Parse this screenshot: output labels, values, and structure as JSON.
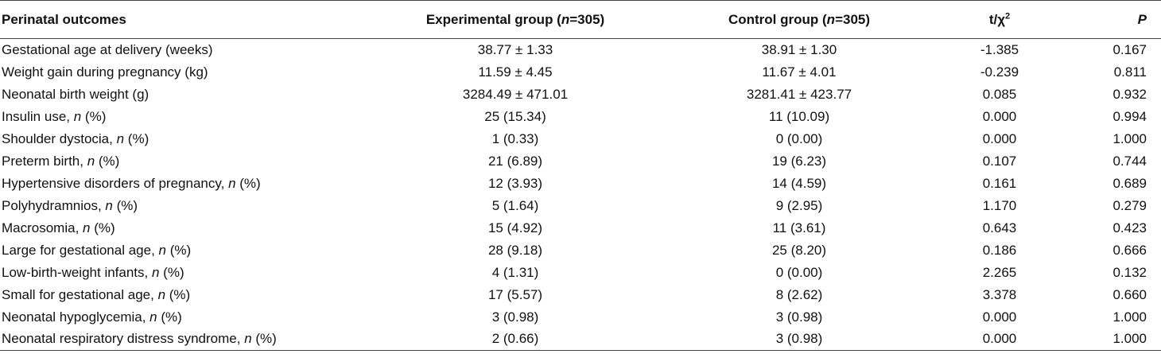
{
  "header": {
    "outcome": "Perinatal outcomes",
    "experimental": [
      "Experimental group (",
      "n",
      "=305)"
    ],
    "control": [
      "Control group (",
      "n",
      "=305)"
    ],
    "stat": [
      "t/χ",
      "2"
    ],
    "p": "P"
  },
  "rows": [
    {
      "outcome": [
        "Gestational age at delivery (weeks)"
      ],
      "experimental": "38.77 ± 1.33",
      "control": "38.91 ± 1.30",
      "stat": "-1.385",
      "p": "0.167"
    },
    {
      "outcome": [
        "Weight gain during pregnancy (kg)"
      ],
      "experimental": "11.59 ± 4.45",
      "control": "11.67 ± 4.01",
      "stat": "-0.239",
      "p": "0.811"
    },
    {
      "outcome": [
        "Neonatal birth weight (g)"
      ],
      "experimental": "3284.49 ± 471.01",
      "control": "3281.41 ± 423.77",
      "stat": "0.085",
      "p": "0.932"
    },
    {
      "outcome": [
        "Insulin use, ",
        "n",
        " (%)"
      ],
      "experimental": "25 (15.34)",
      "control": "11 (10.09)",
      "stat": "0.000",
      "p": "0.994"
    },
    {
      "outcome": [
        "Shoulder dystocia, ",
        "n",
        " (%)"
      ],
      "experimental": "1 (0.33)",
      "control": "0 (0.00)",
      "stat": "0.000",
      "p": "1.000"
    },
    {
      "outcome": [
        "Preterm birth, ",
        "n",
        " (%)"
      ],
      "experimental": "21 (6.89)",
      "control": "19 (6.23)",
      "stat": "0.107",
      "p": "0.744"
    },
    {
      "outcome": [
        "Hypertensive disorders of pregnancy, ",
        "n",
        " (%)"
      ],
      "experimental": "12 (3.93)",
      "control": "14 (4.59)",
      "stat": "0.161",
      "p": "0.689"
    },
    {
      "outcome": [
        "Polyhydramnios, ",
        "n",
        " (%)"
      ],
      "experimental": "5 (1.64)",
      "control": "9 (2.95)",
      "stat": "1.170",
      "p": "0.279"
    },
    {
      "outcome": [
        "Macrosomia, ",
        "n",
        " (%)"
      ],
      "experimental": "15 (4.92)",
      "control": "11 (3.61)",
      "stat": "0.643",
      "p": "0.423"
    },
    {
      "outcome": [
        "Large for gestational age, ",
        "n",
        " (%)"
      ],
      "experimental": "28 (9.18)",
      "control": "25 (8.20)",
      "stat": "0.186",
      "p": "0.666"
    },
    {
      "outcome": [
        "Low-birth-weight infants, ",
        "n",
        " (%)"
      ],
      "experimental": "4 (1.31)",
      "control": "0 (0.00)",
      "stat": "2.265",
      "p": "0.132"
    },
    {
      "outcome": [
        "Small for gestational age, ",
        "n",
        " (%)"
      ],
      "experimental": "17 (5.57)",
      "control": "8 (2.62)",
      "stat": "3.378",
      "p": "0.660"
    },
    {
      "outcome": [
        "Neonatal hypoglycemia, ",
        "n",
        " (%)"
      ],
      "experimental": "3 (0.98)",
      "control": "3 (0.98)",
      "stat": "0.000",
      "p": "1.000"
    },
    {
      "outcome": [
        "Neonatal respiratory distress syndrome, ",
        "n",
        " (%)"
      ],
      "experimental": "2 (0.66)",
      "control": "3 (0.98)",
      "stat": "0.000",
      "p": "1.000"
    }
  ]
}
